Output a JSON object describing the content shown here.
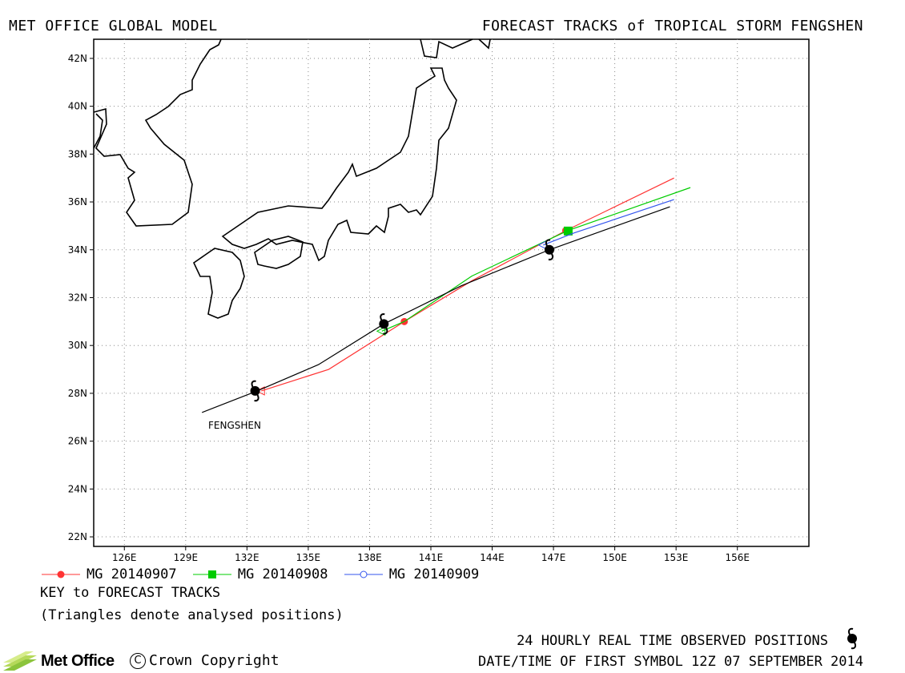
{
  "header": {
    "left_title": "MET OFFICE GLOBAL MODEL",
    "right_title": "FORECAST TRACKS of TROPICAL STORM FENGSHEN"
  },
  "map": {
    "lon_range": [
      124.5,
      159.5
    ],
    "lat_range": [
      21.6,
      42.8
    ],
    "lon_ticks": [
      "126E",
      "129E",
      "132E",
      "135E",
      "138E",
      "141E",
      "144E",
      "147E",
      "150E",
      "153E",
      "156E"
    ],
    "lon_tick_values": [
      126,
      129,
      132,
      135,
      138,
      141,
      144,
      147,
      150,
      153,
      156
    ],
    "lat_ticks": [
      "22N",
      "24N",
      "26N",
      "28N",
      "30N",
      "32N",
      "34N",
      "36N",
      "38N",
      "40N",
      "42N"
    ],
    "lat_tick_values": [
      22,
      24,
      26,
      28,
      30,
      32,
      34,
      36,
      38,
      40,
      42
    ],
    "grid": "dotted",
    "storm_label": "FENGSHEN",
    "colors": {
      "coast": "#000000",
      "observed": "#000000",
      "mg_0907": "#ff3333",
      "mg_0908": "#00cc00",
      "mg_0909": "#3355ee"
    }
  },
  "observed_track": {
    "name": "Observed",
    "points": [
      [
        129.8,
        27.2
      ],
      [
        132.5,
        28.1
      ],
      [
        135.5,
        29.2
      ],
      [
        138.7,
        30.9
      ],
      [
        142.5,
        32.5
      ],
      [
        146.8,
        34.0
      ],
      [
        152.7,
        35.8
      ]
    ],
    "symbols": [
      [
        132.4,
        28.1
      ],
      [
        138.7,
        30.9
      ],
      [
        146.8,
        34.0
      ]
    ]
  },
  "forecast_tracks": [
    {
      "name": "MG 20140907",
      "color": "#ff3333",
      "marker": "circle-filled",
      "points": [
        [
          132.7,
          28.1
        ],
        [
          136.0,
          29.0
        ],
        [
          139.7,
          31.0
        ],
        [
          143.0,
          32.7
        ],
        [
          147.6,
          34.8
        ],
        [
          152.9,
          37.0
        ]
      ],
      "markers": [
        [
          139.7,
          31.0
        ],
        [
          147.6,
          34.8
        ]
      ]
    },
    {
      "name": "MG 20140908",
      "color": "#00cc00",
      "marker": "square-filled",
      "points": [
        [
          138.6,
          30.6
        ],
        [
          139.7,
          31.0
        ],
        [
          143.0,
          32.9
        ],
        [
          147.7,
          34.8
        ],
        [
          153.7,
          36.6
        ]
      ],
      "markers": [
        [
          147.7,
          34.8
        ]
      ]
    },
    {
      "name": "MG 20140909",
      "color": "#3355ee",
      "marker": "circle-open",
      "points": [
        [
          146.5,
          34.2
        ],
        [
          148.0,
          34.7
        ],
        [
          152.9,
          36.1
        ]
      ],
      "markers": []
    }
  ],
  "legend": {
    "items": [
      {
        "label": "MG 20140907",
        "color": "#ff3333",
        "marker": "circle-filled"
      },
      {
        "label": "MG 20140908",
        "color": "#00cc00",
        "marker": "square-filled"
      },
      {
        "label": "MG 20140909",
        "color": "#3355ee",
        "marker": "circle-open"
      }
    ],
    "key_title": "KEY to FORECAST TRACKS",
    "key_note": "(Triangles denote analysed positions)"
  },
  "footer": {
    "observed_note": "24 HOURLY REAL TIME OBSERVED POSITIONS",
    "date_note": "DATE/TIME OF FIRST SYMBOL 12Z 07 SEPTEMBER 2014",
    "logo": "Met Office",
    "copyright": "Crown Copyright"
  }
}
